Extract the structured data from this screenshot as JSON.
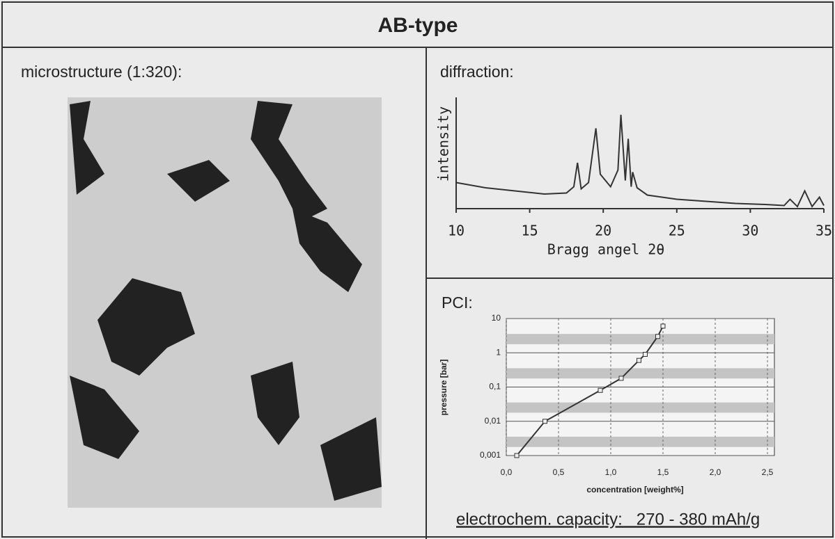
{
  "title": "AB-type",
  "panels": {
    "microstructure": "microstructure (1:320):",
    "diffraction": "diffraction:",
    "pci": "PCI:"
  },
  "capacity": "electrochem. capacity:   270 - 380 mAh/g",
  "chart_data": [
    {
      "type": "line",
      "x_label": "Bragg angel 2θ",
      "y_label": "intensity",
      "color": "#333333",
      "x": [
        10,
        12,
        14,
        16,
        17.5,
        18,
        18.25,
        18.5,
        19,
        19.5,
        19.8,
        20.5,
        21,
        21.2,
        21.5,
        21.7,
        21.9,
        22,
        22.3,
        23,
        25,
        27,
        29,
        31,
        32.3,
        32.7,
        33.2,
        33.7,
        34.2,
        34.7,
        35
      ],
      "values": [
        25,
        20,
        17,
        14,
        15,
        21,
        44,
        19,
        25,
        77,
        33,
        21,
        37,
        90,
        27,
        67,
        21,
        35,
        20,
        13,
        9,
        7,
        5,
        4,
        3,
        9,
        2,
        17,
        2,
        11,
        3
      ],
      "xlim": [
        10,
        35
      ],
      "xticks": [
        10,
        15,
        20,
        25,
        30,
        35
      ],
      "ylim": [
        0,
        100
      ]
    },
    {
      "type": "line",
      "x_label": "concentration [weight%]",
      "y_label": "pressure [bar]",
      "color": "#333333",
      "log_y": true,
      "grid": true,
      "x": [
        0.1,
        0.37,
        0.9,
        1.1,
        1.27,
        1.33,
        1.45,
        1.5
      ],
      "values": [
        0.001,
        0.01,
        0.08,
        0.18,
        0.6,
        0.9,
        3,
        6
      ],
      "xlim": [
        0,
        2.5
      ],
      "xticks": [
        {
          "value": 0,
          "label": "0,0"
        },
        {
          "value": 0.5,
          "label": "0,5"
        },
        {
          "value": 1,
          "label": "1,0"
        },
        {
          "value": 1.5,
          "label": "1,5"
        },
        {
          "value": 2,
          "label": "2,0"
        },
        {
          "value": 2.5,
          "label": "2,5"
        }
      ],
      "ylim": [
        0.001,
        10
      ],
      "yticks": [
        {
          "value": 0.001,
          "label": "0,001"
        },
        {
          "value": 0.01,
          "label": "0,01"
        },
        {
          "value": 0.1,
          "label": "0,1"
        },
        1,
        10
      ]
    }
  ]
}
